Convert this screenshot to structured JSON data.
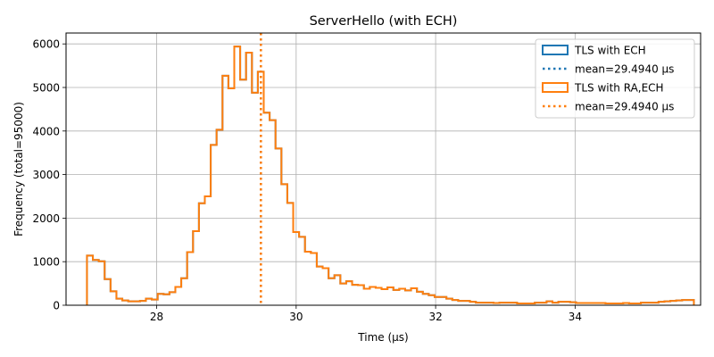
{
  "chart_data": {
    "type": "histogram-step",
    "title": "ServerHello (with ECH)",
    "xlabel": "Time (µs)",
    "ylabel": "Frequency (total=95000)",
    "xlim": [
      26.7,
      35.8
    ],
    "ylim": [
      0,
      6250
    ],
    "xticks": [
      28,
      30,
      32,
      34
    ],
    "yticks": [
      0,
      1000,
      2000,
      3000,
      4000,
      5000,
      6000
    ],
    "grid": true,
    "legend_position": "top-right",
    "legend": [
      {
        "label": "TLS with ECH",
        "kind": "patch",
        "color": "#1f77b4"
      },
      {
        "label": "mean=29.4940 µs",
        "kind": "dotted-line",
        "color": "#1f77b4"
      },
      {
        "label": "TLS with RA,ECH",
        "kind": "patch",
        "color": "#ff7f0e"
      },
      {
        "label": "mean=29.4940 µs",
        "kind": "dotted-line",
        "color": "#ff7f0e"
      }
    ],
    "bin_start": 27.0,
    "bin_width": 0.0845,
    "series": [
      {
        "name": "TLS with ECH",
        "color": "#1f77b4",
        "mean": 29.494,
        "counts": [
          1140,
          1040,
          1010,
          600,
          320,
          150,
          110,
          90,
          90,
          100,
          150,
          130,
          260,
          250,
          300,
          420,
          620,
          1220,
          1700,
          2340,
          2500,
          3680,
          4030,
          5270,
          4980,
          5940,
          5180,
          5800,
          4880,
          5360,
          4420,
          4250,
          3600,
          2780,
          2350,
          1680,
          1570,
          1230,
          1200,
          890,
          850,
          620,
          690,
          500,
          550,
          470,
          460,
          380,
          420,
          400,
          370,
          410,
          350,
          380,
          340,
          390,
          310,
          260,
          230,
          190,
          190,
          150,
          120,
          100,
          100,
          80,
          60,
          60,
          60,
          50,
          60,
          60,
          60,
          40,
          40,
          40,
          60,
          60,
          90,
          60,
          80,
          80,
          70,
          50,
          50,
          50,
          50,
          50,
          40,
          40,
          40,
          50,
          40,
          40,
          60,
          60,
          60,
          80,
          90,
          100,
          110,
          120,
          120
        ]
      },
      {
        "name": "TLS with RA,ECH",
        "color": "#ff7f0e",
        "mean": 29.494,
        "counts": [
          1140,
          1040,
          1010,
          600,
          320,
          150,
          110,
          90,
          90,
          100,
          150,
          130,
          260,
          250,
          300,
          420,
          620,
          1220,
          1700,
          2340,
          2500,
          3680,
          4030,
          5270,
          4980,
          5940,
          5180,
          5800,
          4880,
          5360,
          4420,
          4250,
          3600,
          2780,
          2350,
          1680,
          1570,
          1230,
          1200,
          890,
          850,
          620,
          690,
          500,
          550,
          470,
          460,
          380,
          420,
          400,
          370,
          410,
          350,
          380,
          340,
          390,
          310,
          260,
          230,
          190,
          190,
          150,
          120,
          100,
          100,
          80,
          60,
          60,
          60,
          50,
          60,
          60,
          60,
          40,
          40,
          40,
          60,
          60,
          90,
          60,
          80,
          80,
          70,
          50,
          50,
          50,
          50,
          50,
          40,
          40,
          40,
          50,
          40,
          40,
          60,
          60,
          60,
          80,
          90,
          100,
          110,
          120,
          120
        ]
      }
    ]
  }
}
